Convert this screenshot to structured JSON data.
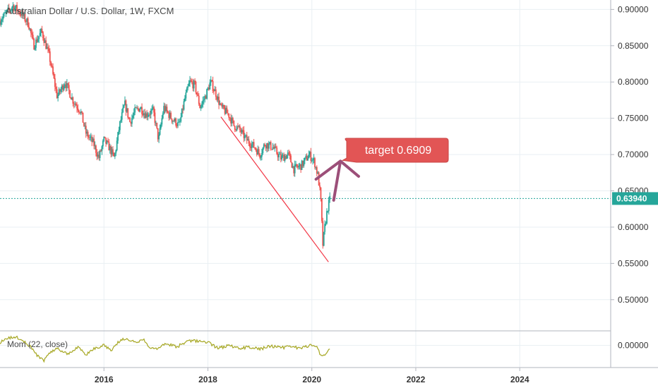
{
  "chart_data": {
    "type": "candlestick",
    "title": "Australian Dollar / U.S. Dollar, 1W, FXCM",
    "xlim": [
      2014.0,
      2025.75
    ],
    "ylim": [
      0.458,
      0.913
    ],
    "y_ticks": [
      "0.90000",
      "0.85000",
      "0.80000",
      "0.75000",
      "0.70000",
      "0.65000",
      "0.60000",
      "0.55000",
      "0.50000"
    ],
    "x_ticks": [
      "2016",
      "2018",
      "2020",
      "2022",
      "2024"
    ],
    "colors": {
      "up": "#26a69a",
      "down": "#ef5350",
      "grid": "#e9eff3",
      "trendline": "#f23645",
      "arrow": "#9c4f79",
      "callout": "#e25555",
      "momentum": "#a5a620",
      "price_line": "#26a69a"
    },
    "ohlc_path": [
      [
        2014.0,
        0.885
      ],
      [
        2014.25,
        0.905
      ],
      [
        2014.4,
        0.895
      ],
      [
        2014.55,
        0.88
      ],
      [
        2014.65,
        0.85
      ],
      [
        2014.8,
        0.87
      ],
      [
        2014.95,
        0.835
      ],
      [
        2015.1,
        0.78
      ],
      [
        2015.25,
        0.8
      ],
      [
        2015.4,
        0.775
      ],
      [
        2015.55,
        0.76
      ],
      [
        2015.65,
        0.73
      ],
      [
        2015.8,
        0.715
      ],
      [
        2015.9,
        0.695
      ],
      [
        2016.0,
        0.72
      ],
      [
        2016.1,
        0.71
      ],
      [
        2016.2,
        0.695
      ],
      [
        2016.3,
        0.74
      ],
      [
        2016.4,
        0.77
      ],
      [
        2016.5,
        0.745
      ],
      [
        2016.6,
        0.76
      ],
      [
        2016.7,
        0.765
      ],
      [
        2016.8,
        0.755
      ],
      [
        2016.95,
        0.76
      ],
      [
        2017.05,
        0.72
      ],
      [
        2017.15,
        0.765
      ],
      [
        2017.3,
        0.75
      ],
      [
        2017.45,
        0.74
      ],
      [
        2017.55,
        0.775
      ],
      [
        2017.65,
        0.8
      ],
      [
        2017.75,
        0.795
      ],
      [
        2017.85,
        0.765
      ],
      [
        2017.95,
        0.78
      ],
      [
        2018.05,
        0.8
      ],
      [
        2018.15,
        0.785
      ],
      [
        2018.25,
        0.765
      ],
      [
        2018.4,
        0.755
      ],
      [
        2018.5,
        0.74
      ],
      [
        2018.6,
        0.735
      ],
      [
        2018.75,
        0.72
      ],
      [
        2018.9,
        0.71
      ],
      [
        2019.0,
        0.7
      ],
      [
        2019.1,
        0.715
      ],
      [
        2019.25,
        0.71
      ],
      [
        2019.4,
        0.695
      ],
      [
        2019.55,
        0.7
      ],
      [
        2019.65,
        0.68
      ],
      [
        2019.8,
        0.685
      ],
      [
        2019.95,
        0.7
      ],
      [
        2020.05,
        0.69
      ],
      [
        2020.12,
        0.67
      ],
      [
        2020.17,
        0.64
      ],
      [
        2020.21,
        0.575
      ],
      [
        2020.25,
        0.6
      ],
      [
        2020.3,
        0.625
      ],
      [
        2020.35,
        0.639
      ]
    ],
    "last_price": 0.6394,
    "last_price_label": "0.63940",
    "trendline": {
      "from": [
        2018.25,
        0.752
      ],
      "to": [
        2020.32,
        0.552
      ]
    },
    "arrow": {
      "from": [
        2020.42,
        0.637
      ],
      "tip": [
        2020.55,
        0.691
      ],
      "head_left": [
        2020.08,
        0.666
      ],
      "head_right": [
        2020.9,
        0.67
      ]
    },
    "callout": {
      "text": "target 0.6909",
      "anchor": [
        2020.55,
        0.691
      ]
    },
    "indicator": {
      "label": "Mom (22, close)",
      "ylim": [
        -0.028,
        0.018
      ],
      "y_ticks": [
        "0.00000"
      ],
      "values_path": [
        [
          2014.0,
          0.004
        ],
        [
          2014.2,
          0.01
        ],
        [
          2014.3,
          0.011
        ],
        [
          2014.45,
          0.006
        ],
        [
          2014.6,
          -0.003
        ],
        [
          2014.75,
          -0.016
        ],
        [
          2014.85,
          -0.02
        ],
        [
          2014.95,
          -0.01
        ],
        [
          2015.1,
          -0.004
        ],
        [
          2015.3,
          -0.011
        ],
        [
          2015.5,
          -0.002
        ],
        [
          2015.65,
          -0.013
        ],
        [
          2015.8,
          -0.004
        ],
        [
          2016.0,
          0.0
        ],
        [
          2016.15,
          -0.006
        ],
        [
          2016.3,
          0.006
        ],
        [
          2016.45,
          0.009
        ],
        [
          2016.6,
          0.004
        ],
        [
          2016.75,
          0.008
        ],
        [
          2016.9,
          -0.003
        ],
        [
          2017.05,
          -0.004
        ],
        [
          2017.2,
          0.002
        ],
        [
          2017.4,
          -0.002
        ],
        [
          2017.6,
          0.005
        ],
        [
          2017.8,
          0.006
        ],
        [
          2018.0,
          0.004
        ],
        [
          2018.2,
          -0.004
        ],
        [
          2018.4,
          0.0
        ],
        [
          2018.6,
          -0.004
        ],
        [
          2018.8,
          -0.002
        ],
        [
          2019.0,
          -0.005
        ],
        [
          2019.2,
          -0.001
        ],
        [
          2019.4,
          -0.003
        ],
        [
          2019.6,
          -0.002
        ],
        [
          2019.8,
          -0.004
        ],
        [
          2020.0,
          0.001
        ],
        [
          2020.1,
          -0.003
        ],
        [
          2020.2,
          -0.016
        ],
        [
          2020.25,
          -0.011
        ],
        [
          2020.35,
          -0.006
        ]
      ]
    }
  }
}
